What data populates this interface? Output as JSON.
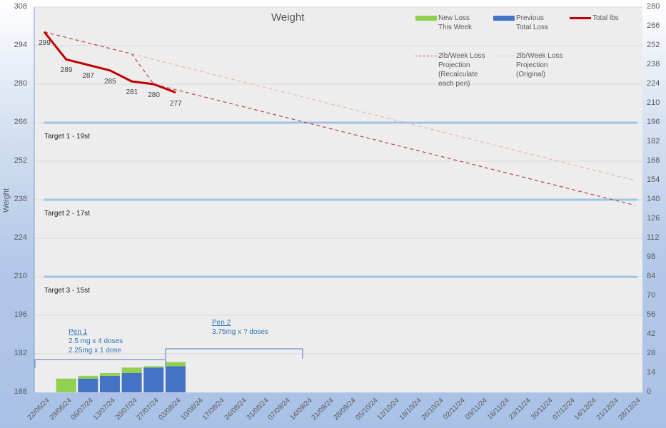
{
  "chart_data": {
    "type": "combo",
    "title": "Weight",
    "ylabel": "Weight",
    "ylim_left": [
      168,
      308
    ],
    "ylim_right": [
      0,
      280
    ],
    "left_ticks": [
      308,
      294,
      280,
      266,
      252,
      238,
      224,
      210,
      196,
      182,
      168
    ],
    "right_ticks": [
      280,
      266,
      252,
      238,
      224,
      210,
      196,
      182,
      168,
      154,
      140,
      126,
      112,
      98,
      84,
      70,
      56,
      42,
      28,
      14,
      0
    ],
    "categories": [
      "22/06/24",
      "29/06/24",
      "06/07/24",
      "13/07/24",
      "20/07/24",
      "27/07/24",
      "03/08/24",
      "10/08/24",
      "17/08/24",
      "24/08/24",
      "31/08/24",
      "07/09/24",
      "14/09/24",
      "21/09/24",
      "28/09/24",
      "05/10/24",
      "12/10/24",
      "19/10/24",
      "26/10/24",
      "02/11/24",
      "09/11/24",
      "16/11/24",
      "23/11/24",
      "30/11/24",
      "07/12/24",
      "14/12/24",
      "21/12/24",
      "28/12/24"
    ],
    "series": [
      {
        "name": "Total lbs",
        "type": "line",
        "axis": "left",
        "color": "#c00000",
        "values": [
          299,
          289,
          287,
          285,
          281,
          280,
          277
        ]
      },
      {
        "name": "New Loss This Week",
        "type": "stacked-bar",
        "axis": "right",
        "color": "#92d050",
        "values": [
          0,
          10,
          2,
          2,
          4,
          1,
          3
        ]
      },
      {
        "name": "Previous Total Loss",
        "type": "stacked-bar",
        "axis": "right",
        "color": "#4472c4",
        "values": [
          0,
          0,
          10,
          12,
          14,
          18,
          19
        ]
      },
      {
        "name": "2lb/Week Loss Projection (Recalculate each pen)",
        "type": "dashed-line",
        "axis": "left",
        "color": "#c0504d",
        "start": {
          "x": "22/06/24",
          "y": 299
        },
        "recalc": {
          "x": "27/07/24",
          "y": 280
        },
        "end": {
          "x": "28/12/24",
          "y": 236
        }
      },
      {
        "name": "2lb/Week Loss Projection (Original)",
        "type": "dashed-line",
        "axis": "left",
        "color": "#f4b5a5",
        "start": {
          "x": "22/06/24",
          "y": 299
        },
        "end": {
          "x": "28/12/24",
          "y": 245
        }
      }
    ],
    "targets": [
      {
        "label": "Target 1 - 19st",
        "value": 266
      },
      {
        "label": "Target 2 - 17st",
        "value": 238
      },
      {
        "label": "Target 3 - 15st",
        "value": 210
      }
    ],
    "data_labels": [
      299,
      289,
      287,
      285,
      281,
      280,
      277
    ],
    "annotations": [
      {
        "title": "Pen 1",
        "lines": [
          "2.5 mg x 4 doses",
          "2.25mg x 1 dose"
        ]
      },
      {
        "title": "Pen 2",
        "lines": [
          "3.75mg x ? doses"
        ]
      }
    ],
    "legend": [
      "New Loss This Week",
      "Previous Total Loss",
      "Total lbs",
      "2lb/Week Loss Projection (Recalculate each pen)",
      "2lb/Week Loss Projection (Original)"
    ]
  },
  "legend": {
    "new_loss": "New Loss\nThis Week",
    "new_loss_1": "New Loss",
    "new_loss_2": "This Week",
    "prev_1": "Previous",
    "prev_2": "Total Loss",
    "total": "Total lbs",
    "recalc_1": "2lb/Week Loss",
    "recalc_2": "Projection",
    "recalc_3": "(Recalculate",
    "recalc_4": "each pen)",
    "orig_1": "2lb/Week Loss",
    "orig_2": "Projection",
    "orig_3": "(Original)"
  },
  "pen1": {
    "title": "Pen 1",
    "l1": "2.5 mg x 4 doses",
    "l2": "2.25mg x 1 dose"
  },
  "pen2": {
    "title": "Pen 2",
    "l1": "3.75mg x ? doses"
  }
}
